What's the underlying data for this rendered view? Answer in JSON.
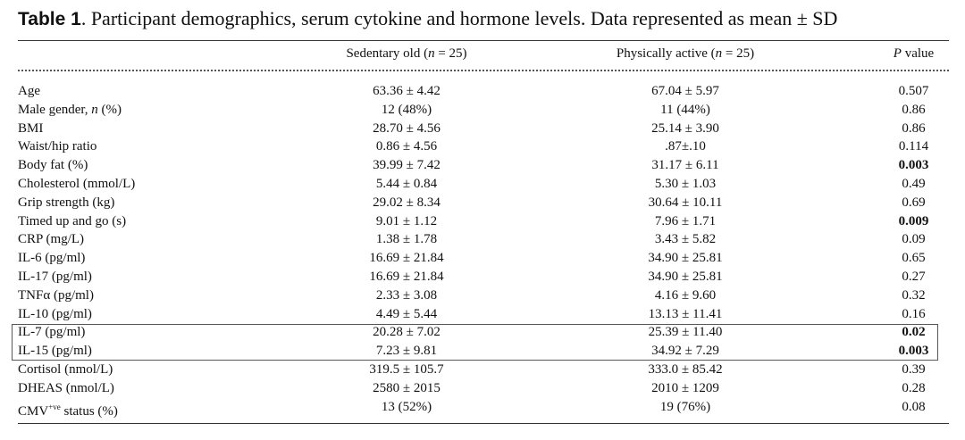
{
  "caption": {
    "label": "Table 1",
    "text": ".  Participant demographics, serum cytokine and hormone levels. Data represented as mean ± SD"
  },
  "headers": {
    "col1_pre": "Sedentary old (",
    "col1_n": "n",
    "col1_post": " = 25)",
    "col2_pre": "Physically active (",
    "col2_n": "n",
    "col2_post": " = 25)",
    "col3_p": "P",
    "col3_post": " value"
  },
  "rows": [
    {
      "label": "Age",
      "sedentary": "63.36 ± 4.42",
      "active": "67.04 ± 5.97",
      "p": "0.507"
    },
    {
      "label_pre": "Male gender, ",
      "label_n": "n",
      "label_post": " (%)",
      "sedentary": "12 (48%)",
      "active": "11 (44%)",
      "p": "0.86"
    },
    {
      "label": "BMI",
      "sedentary": "28.70 ± 4.56",
      "active": "25.14 ± 3.90",
      "p": "0.86"
    },
    {
      "label": "Waist/hip ratio",
      "sedentary": "0.86 ± 4.56",
      "active": ".87±.10",
      "p": "0.114"
    },
    {
      "label": "Body fat (%)",
      "sedentary": "39.99 ± 7.42",
      "active": "31.17 ± 6.11",
      "p": "0.003"
    },
    {
      "label": "Cholesterol (mmol/L)",
      "sedentary": "5.44 ± 0.84",
      "active": "5.30 ± 1.03",
      "p": "0.49"
    },
    {
      "label": "Grip strength (kg)",
      "sedentary": "29.02 ± 8.34",
      "active": "30.64 ± 10.11",
      "p": "0.69"
    },
    {
      "label": "Timed up and go (s)",
      "sedentary": "9.01 ± 1.12",
      "active": "7.96 ± 1.71",
      "p": "0.009"
    },
    {
      "label": "CRP (mg/L)",
      "sedentary": "1.38 ± 1.78",
      "active": "3.43 ± 5.82",
      "p": "0.09"
    },
    {
      "label": "IL-6 (pg/ml)",
      "sedentary": "16.69 ± 21.84",
      "active": "34.90 ± 25.81",
      "p": "0.65"
    },
    {
      "label": "IL-17 (pg/ml)",
      "sedentary": "16.69 ± 21.84",
      "active": "34.90 ± 25.81",
      "p": "0.27"
    },
    {
      "label": "TNFα (pg/ml)",
      "sedentary": "2.33 ± 3.08",
      "active": "4.16 ± 9.60",
      "p": "0.32"
    },
    {
      "label": "IL-10 (pg/ml)",
      "sedentary": "4.49 ± 5.44",
      "active": "13.13 ± 11.41",
      "p": "0.16"
    },
    {
      "label": "IL-7 (pg/ml)",
      "sedentary": "20.28 ± 7.02",
      "active": "25.39 ± 11.40",
      "p": "0.02"
    },
    {
      "label": "IL-15 (pg/ml)",
      "sedentary": "7.23 ± 9.81",
      "active": "34.92 ± 7.29",
      "p": "0.003"
    },
    {
      "label": "Cortisol (nmol/L)",
      "sedentary": "319.5 ± 105.7",
      "active": "333.0 ± 85.42",
      "p": "0.39"
    },
    {
      "label": "DHEAS (nmol/L)",
      "sedentary": "2580 ± 2015",
      "active": "2010 ± 1209",
      "p": "0.28"
    },
    {
      "label_pre": "CMV",
      "label_sup": "+ve",
      "label_post": " status (%)",
      "sedentary": "13 (52%)",
      "active": "19 (76%)",
      "p": "0.08"
    }
  ],
  "highlight_color": "#c9252b"
}
